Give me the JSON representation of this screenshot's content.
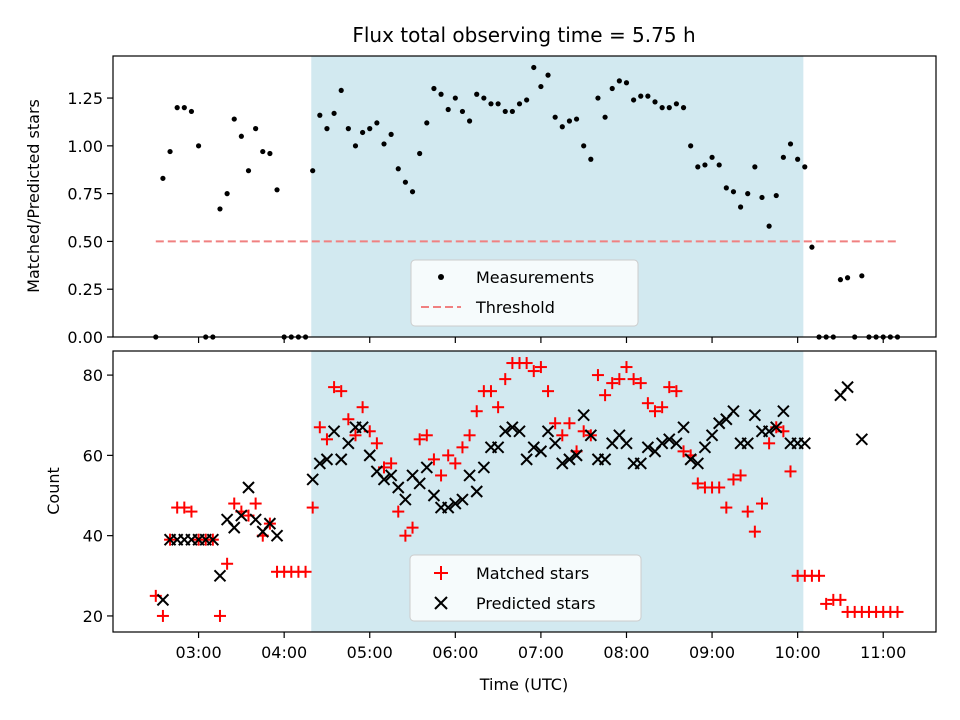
{
  "chart_data": [
    {
      "type": "scatter",
      "title": "Flux total observing time = 5.75 h",
      "xlabel": "",
      "ylabel": "Matched/Predicted stars",
      "xlim": [
        "02:00",
        "11:37"
      ],
      "ylim": [
        0,
        1.47
      ],
      "yticks": [
        0.0,
        0.25,
        0.5,
        0.75,
        1.0,
        1.25
      ],
      "ytick_labels": [
        "0.00",
        "0.25",
        "0.50",
        "0.75",
        "1.00",
        "1.25"
      ],
      "grid": false,
      "legend_position": "bottom-center",
      "shaded_interval": {
        "start": "04:19",
        "end": "10:04",
        "color": "#d2e9f0"
      },
      "series": [
        {
          "name": "Measurements",
          "kind": "scatter",
          "marker": "dot",
          "color": "#000000",
          "x": [
            "02:30",
            "02:35",
            "02:40",
            "02:45",
            "02:50",
            "02:55",
            "03:00",
            "03:05",
            "03:10",
            "03:15",
            "03:20",
            "03:25",
            "03:30",
            "03:35",
            "03:40",
            "03:45",
            "03:50",
            "03:55",
            "04:00",
            "04:05",
            "04:10",
            "04:15",
            "04:20",
            "04:25",
            "04:30",
            "04:35",
            "04:40",
            "04:45",
            "04:50",
            "04:55",
            "05:00",
            "05:05",
            "05:10",
            "05:15",
            "05:20",
            "05:25",
            "05:30",
            "05:35",
            "05:40",
            "05:45",
            "05:50",
            "05:55",
            "06:00",
            "06:05",
            "06:10",
            "06:15",
            "06:20",
            "06:25",
            "06:30",
            "06:35",
            "06:40",
            "06:45",
            "06:50",
            "06:55",
            "07:00",
            "07:05",
            "07:10",
            "07:15",
            "07:20",
            "07:25",
            "07:30",
            "07:35",
            "07:40",
            "07:45",
            "07:50",
            "07:55",
            "08:00",
            "08:05",
            "08:10",
            "08:15",
            "08:20",
            "08:25",
            "08:30",
            "08:35",
            "08:40",
            "08:45",
            "08:50",
            "08:55",
            "09:00",
            "09:05",
            "09:10",
            "09:15",
            "09:20",
            "09:25",
            "09:30",
            "09:35",
            "09:40",
            "09:45",
            "09:50",
            "09:55",
            "10:00",
            "10:05",
            "10:10",
            "10:15",
            "10:20",
            "10:25",
            "10:30",
            "10:35",
            "10:40",
            "10:45",
            "10:50",
            "10:55",
            "11:00",
            "11:05",
            "11:10"
          ],
          "y": [
            0.0,
            0.83,
            0.97,
            1.2,
            1.2,
            1.18,
            1.0,
            0.0,
            0.0,
            0.67,
            0.75,
            1.14,
            1.05,
            0.87,
            1.09,
            0.97,
            0.96,
            0.77,
            0.0,
            0.0,
            0.0,
            0.0,
            0.87,
            1.16,
            1.09,
            1.17,
            1.29,
            1.09,
            1.0,
            1.07,
            1.09,
            1.12,
            1.01,
            1.06,
            0.88,
            0.81,
            0.76,
            0.96,
            1.12,
            1.3,
            1.27,
            1.19,
            1.25,
            1.18,
            1.13,
            1.27,
            1.25,
            1.22,
            1.22,
            1.18,
            1.18,
            1.22,
            1.24,
            1.41,
            1.31,
            1.37,
            1.15,
            1.1,
            1.13,
            1.14,
            1.0,
            0.93,
            1.25,
            1.15,
            1.3,
            1.34,
            1.33,
            1.24,
            1.26,
            1.26,
            1.23,
            1.2,
            1.2,
            1.22,
            1.2,
            1.0,
            0.89,
            0.9,
            0.94,
            0.9,
            0.78,
            0.76,
            0.68,
            0.75,
            0.89,
            0.73,
            0.58,
            0.74,
            0.94,
            1.01,
            0.93,
            0.89,
            0.47,
            0.0,
            0.0,
            0.0,
            0.3,
            0.31,
            0.0,
            0.32,
            0.0,
            0.0,
            0.0,
            0.0,
            0.0
          ]
        },
        {
          "name": "Threshold",
          "kind": "line",
          "style": "dashed",
          "color": "#f08080",
          "x": [
            "02:30",
            "11:10"
          ],
          "y": [
            0.5,
            0.5
          ]
        }
      ]
    },
    {
      "type": "scatter",
      "title": "",
      "xlabel": "Time (UTC)",
      "ylabel": "Count",
      "xlim": [
        "02:00",
        "11:37"
      ],
      "ylim": [
        16,
        86
      ],
      "xticks": [
        "03:00",
        "04:00",
        "05:00",
        "06:00",
        "07:00",
        "08:00",
        "09:00",
        "10:00",
        "11:00"
      ],
      "yticks": [
        20,
        40,
        60,
        80
      ],
      "grid": false,
      "legend_position": "bottom-center",
      "shaded_interval": {
        "start": "04:19",
        "end": "10:04",
        "color": "#d2e9f0"
      },
      "series": [
        {
          "name": "Matched stars",
          "kind": "scatter",
          "marker": "plus",
          "color": "#ff0000",
          "x": [
            "02:30",
            "02:35",
            "02:40",
            "02:45",
            "02:50",
            "02:55",
            "03:00",
            "03:05",
            "03:10",
            "03:15",
            "03:20",
            "03:25",
            "03:30",
            "03:35",
            "03:40",
            "03:45",
            "03:50",
            "03:55",
            "04:00",
            "04:05",
            "04:10",
            "04:15",
            "04:20",
            "04:25",
            "04:30",
            "04:35",
            "04:40",
            "04:45",
            "04:50",
            "04:55",
            "05:00",
            "05:05",
            "05:10",
            "05:15",
            "05:20",
            "05:25",
            "05:30",
            "05:35",
            "05:40",
            "05:45",
            "05:50",
            "05:55",
            "06:00",
            "06:05",
            "06:10",
            "06:15",
            "06:20",
            "06:25",
            "06:30",
            "06:35",
            "06:40",
            "06:45",
            "06:50",
            "06:55",
            "07:00",
            "07:05",
            "07:10",
            "07:15",
            "07:20",
            "07:25",
            "07:30",
            "07:35",
            "07:40",
            "07:45",
            "07:50",
            "07:55",
            "08:00",
            "08:05",
            "08:10",
            "08:15",
            "08:20",
            "08:25",
            "08:30",
            "08:35",
            "08:40",
            "08:45",
            "08:50",
            "08:55",
            "09:00",
            "09:05",
            "09:10",
            "09:15",
            "09:20",
            "09:25",
            "09:30",
            "09:35",
            "09:40",
            "09:45",
            "09:50",
            "09:55",
            "10:00",
            "10:05",
            "10:10",
            "10:15",
            "10:20",
            "10:25",
            "10:30",
            "10:35",
            "10:40",
            "10:45",
            "10:50",
            "10:55",
            "11:00",
            "11:05",
            "11:10"
          ],
          "y": [
            25,
            20,
            39,
            47,
            47,
            46,
            39,
            39,
            39,
            20,
            33,
            48,
            46,
            45,
            48,
            40,
            43,
            31,
            31,
            31,
            31,
            31,
            47,
            67,
            64,
            77,
            76,
            69,
            65,
            72,
            66,
            63,
            57,
            58,
            46,
            40,
            42,
            64,
            65,
            59,
            55,
            60,
            58,
            62,
            65,
            71,
            76,
            76,
            72,
            79,
            83,
            83,
            83,
            81,
            82,
            76,
            68,
            65,
            68,
            61,
            66,
            65,
            80,
            75,
            78,
            79,
            82,
            79,
            78,
            73,
            71,
            72,
            77,
            76,
            61,
            60,
            53,
            52,
            52,
            52,
            47,
            54,
            55,
            46,
            41,
            48,
            63,
            67,
            66,
            56,
            30,
            30,
            30,
            30,
            23,
            24,
            24,
            21,
            21,
            21,
            21,
            21,
            21,
            21,
            21
          ]
        },
        {
          "name": "Predicted stars",
          "kind": "scatter",
          "marker": "x",
          "color": "#000000",
          "x": [
            "02:35",
            "02:40",
            "02:45",
            "02:50",
            "02:55",
            "03:00",
            "03:05",
            "03:10",
            "03:15",
            "03:20",
            "03:25",
            "03:30",
            "03:35",
            "03:40",
            "03:45",
            "03:50",
            "03:55",
            "04:20",
            "04:25",
            "04:30",
            "04:35",
            "04:40",
            "04:45",
            "04:50",
            "04:55",
            "05:00",
            "05:05",
            "05:10",
            "05:15",
            "05:20",
            "05:25",
            "05:30",
            "05:35",
            "05:40",
            "05:45",
            "05:50",
            "05:55",
            "06:00",
            "06:05",
            "06:10",
            "06:15",
            "06:20",
            "06:25",
            "06:30",
            "06:35",
            "06:40",
            "06:45",
            "06:50",
            "06:55",
            "07:00",
            "07:05",
            "07:10",
            "07:15",
            "07:20",
            "07:25",
            "07:30",
            "07:35",
            "07:40",
            "07:45",
            "07:50",
            "07:55",
            "08:00",
            "08:05",
            "08:10",
            "08:15",
            "08:20",
            "08:25",
            "08:30",
            "08:35",
            "08:40",
            "08:45",
            "08:50",
            "08:55",
            "09:00",
            "09:05",
            "09:10",
            "09:15",
            "09:20",
            "09:25",
            "09:30",
            "09:35",
            "09:40",
            "09:45",
            "09:50",
            "09:55",
            "10:00",
            "10:05",
            "10:30",
            "10:35",
            "10:45"
          ],
          "y": [
            24,
            39,
            39,
            39,
            39,
            39,
            39,
            39,
            30,
            44,
            42,
            45,
            52,
            44,
            41,
            43,
            40,
            54,
            58,
            59,
            66,
            59,
            63,
            67,
            67,
            60,
            56,
            54,
            55,
            52,
            49,
            55,
            53,
            57,
            50,
            47,
            47,
            48,
            49,
            55,
            51,
            57,
            62,
            62,
            66,
            67,
            66,
            59,
            62,
            61,
            66,
            63,
            58,
            59,
            60,
            70,
            65,
            59,
            59,
            63,
            65,
            63,
            58,
            58,
            62,
            61,
            63,
            64,
            63,
            67,
            59,
            58,
            62,
            65,
            68,
            69,
            71,
            63,
            63,
            70,
            66,
            66,
            67,
            71,
            63,
            63,
            63,
            75,
            77,
            64
          ]
        }
      ]
    }
  ]
}
